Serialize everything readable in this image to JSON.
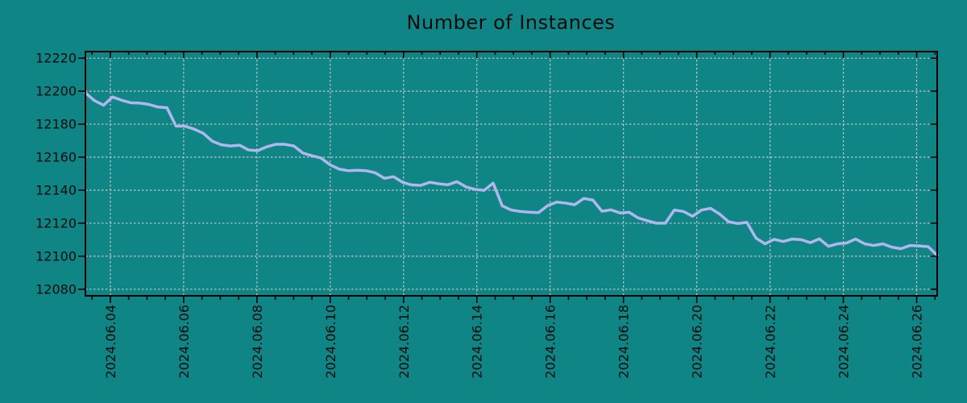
{
  "chart_data": {
    "type": "line",
    "title": "Number of Instances",
    "xlabel": "",
    "ylabel": "",
    "legend": "none",
    "grid": "dashed",
    "background_color": "#108585",
    "axis_color": "#000000",
    "text_color": "#0b0b0b",
    "grid_color": "#c6c6c6",
    "line_color": "#b0b6ee",
    "y_ticks": [
      12080,
      12100,
      12120,
      12140,
      12160,
      12180,
      12200,
      12220
    ],
    "ylim": [
      12076,
      12224
    ],
    "x_tick_labels": [
      "2024.06.04",
      "2024.06.06",
      "2024.06.08",
      "2024.06.10",
      "2024.06.12",
      "2024.06.14",
      "2024.06.16",
      "2024.06.18",
      "2024.06.20",
      "2024.06.22",
      "2024.06.24",
      "2024.06.26"
    ],
    "x_tick_days_of_june_2024": [
      4,
      6,
      8,
      10,
      12,
      14,
      16,
      18,
      20,
      22,
      24,
      26
    ],
    "xlim_days_of_june_2024": [
      3.32,
      26.56
    ],
    "x_minor_tick_step_days": 0.5,
    "series": [
      {
        "name": "Number of Instances",
        "color": "#b0b6ee",
        "points_evenly_spaced_over_x_range": true,
        "values": [
          12199.0,
          12194.3,
          12191.5,
          12196.5,
          12194.5,
          12193.0,
          12192.8,
          12192.0,
          12190.4,
          12190.0,
          12178.8,
          12178.8,
          12177.0,
          12174.5,
          12169.7,
          12167.5,
          12166.8,
          12167.3,
          12164.4,
          12163.9,
          12166.3,
          12167.8,
          12167.8,
          12166.8,
          12162.5,
          12160.9,
          12159.5,
          12155.4,
          12152.8,
          12151.8,
          12152.1,
          12151.8,
          12150.5,
          12147.2,
          12148.2,
          12144.8,
          12143.2,
          12142.9,
          12144.8,
          12143.9,
          12143.3,
          12145.2,
          12142.0,
          12140.5,
          12139.9,
          12144.3,
          12130.5,
          12128.0,
          12127.1,
          12126.7,
          12126.4,
          12130.6,
          12132.8,
          12132.2,
          12131.2,
          12135.0,
          12134.0,
          12127.3,
          12128.1,
          12126.2,
          12126.6,
          12123.2,
          12121.5,
          12120.0,
          12120.0,
          12128.0,
          12127.1,
          12124.2,
          12128.0,
          12129.0,
          12125.5,
          12120.8,
          12119.8,
          12120.5,
          12111.0,
          12107.5,
          12110.2,
          12108.9,
          12110.4,
          12110.0,
          12108.2,
          12110.5,
          12106.0,
          12107.5,
          12108.0,
          12110.4,
          12107.5,
          12106.5,
          12107.5,
          12105.5,
          12104.5,
          12106.5,
          12106.2,
          12105.8,
          12100.6
        ]
      }
    ]
  }
}
